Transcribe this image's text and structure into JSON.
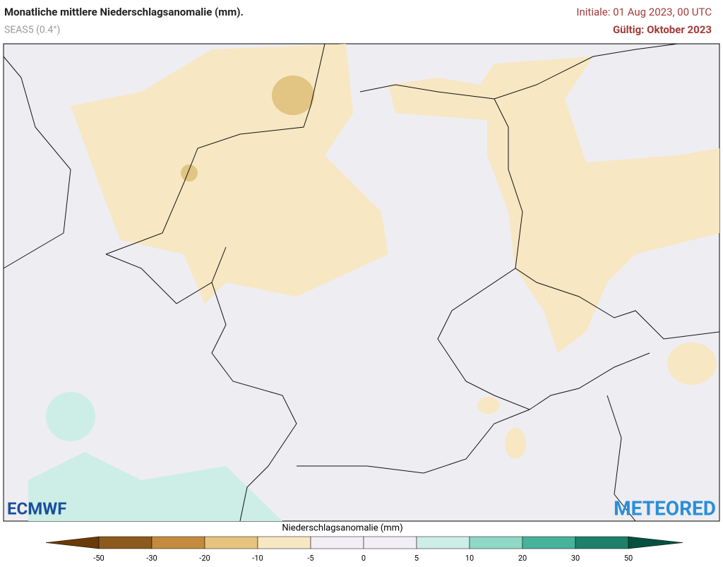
{
  "header": {
    "title": "Monatliche mittlere Niederschlagsanomalie (mm).",
    "subtitle": "SEAS5 (0.4°)",
    "initial": "Initiale: 01 Aug 2023, 00 UTC",
    "valid": "Gültig: Oktober 2023"
  },
  "logos": {
    "left": "ECMWF",
    "right": "METEORED"
  },
  "colorbar": {
    "label": "Niederschlagsanomalie (mm)",
    "ticks": [
      -50,
      -30,
      -20,
      -10,
      -5,
      0,
      5,
      10,
      20,
      30,
      50
    ],
    "colors": [
      "#6b3a05",
      "#8b5a1c",
      "#c48b3e",
      "#e6c47d",
      "#f7e7c3",
      "#f1eff5",
      "#f1eff5",
      "#cdeee6",
      "#8fd8c6",
      "#46b39a",
      "#1e8068",
      "#06503f"
    ]
  }
}
